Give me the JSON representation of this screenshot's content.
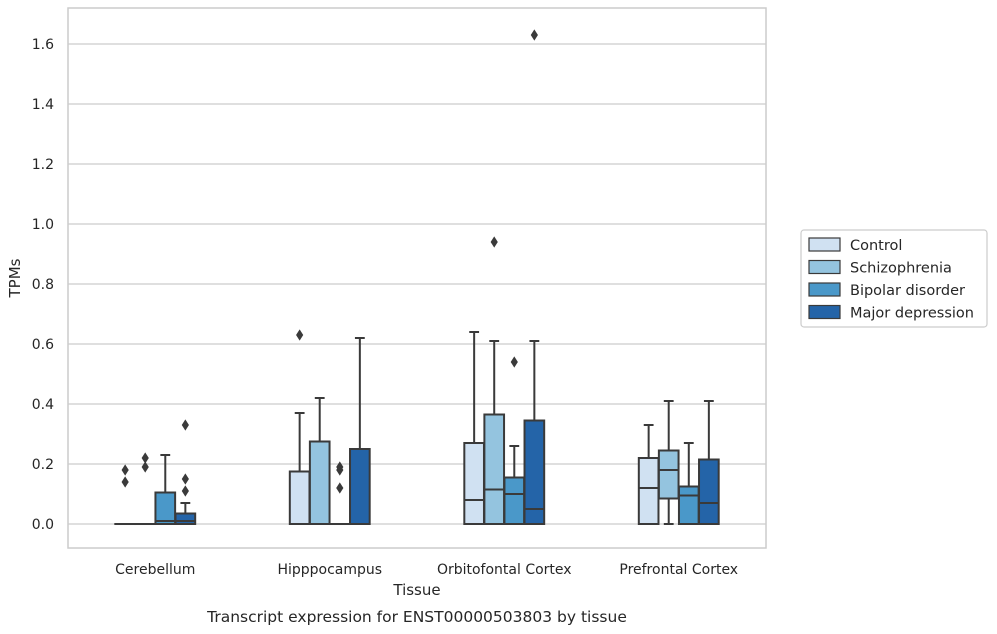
{
  "chart_data": {
    "type": "box",
    "title": "",
    "caption": "Transcript expression for ENST00000503803 by tissue",
    "xlabel": "Tissue",
    "ylabel": "TPMs",
    "ylim": [
      -0.08,
      1.72
    ],
    "yticks": [
      "0.0",
      "0.2",
      "0.4",
      "0.6",
      "0.8",
      "1.0",
      "1.2",
      "1.4",
      "1.6"
    ],
    "grid": "horizontal",
    "legend_position": "right",
    "categories": [
      "Cerebellum",
      "Hipppocampus",
      "Orbitofontal Cortex",
      "Prefrontal Cortex"
    ],
    "series": [
      {
        "name": "Control",
        "color": "#d0e1f2",
        "boxes": [
          {
            "whislo": 0.0,
            "q1": 0.0,
            "med": 0.0,
            "q3": 0.0,
            "whishi": 0.0,
            "fliers": [
              0.14,
              0.18
            ]
          },
          {
            "whislo": 0.0,
            "q1": 0.0,
            "med": 0.0,
            "q3": 0.175,
            "whishi": 0.37,
            "fliers": [
              0.63
            ]
          },
          {
            "whislo": 0.0,
            "q1": 0.0,
            "med": 0.08,
            "q3": 0.27,
            "whishi": 0.64,
            "fliers": []
          },
          {
            "whislo": 0.0,
            "q1": 0.0,
            "med": 0.12,
            "q3": 0.22,
            "whishi": 0.33,
            "fliers": []
          }
        ]
      },
      {
        "name": "Schizophrenia",
        "color": "#94c4df",
        "boxes": [
          {
            "whislo": 0.0,
            "q1": 0.0,
            "med": 0.0,
            "q3": 0.0,
            "whishi": 0.0,
            "fliers": [
              0.19,
              0.22
            ]
          },
          {
            "whislo": 0.0,
            "q1": 0.0,
            "med": 0.0,
            "q3": 0.275,
            "whishi": 0.42,
            "fliers": []
          },
          {
            "whislo": 0.0,
            "q1": 0.0,
            "med": 0.115,
            "q3": 0.365,
            "whishi": 0.61,
            "fliers": [
              0.94
            ]
          },
          {
            "whislo": 0.0,
            "q1": 0.085,
            "med": 0.18,
            "q3": 0.245,
            "whishi": 0.41,
            "fliers": []
          }
        ]
      },
      {
        "name": "Bipolar disorder",
        "color": "#4a98c9",
        "boxes": [
          {
            "whislo": 0.0,
            "q1": 0.0,
            "med": 0.01,
            "q3": 0.105,
            "whishi": 0.23,
            "fliers": []
          },
          {
            "whislo": 0.0,
            "q1": 0.0,
            "med": 0.0,
            "q3": 0.0,
            "whishi": 0.0,
            "fliers": [
              0.12,
              0.18,
              0.19
            ]
          },
          {
            "whislo": 0.0,
            "q1": 0.0,
            "med": 0.1,
            "q3": 0.155,
            "whishi": 0.26,
            "fliers": [
              0.54
            ]
          },
          {
            "whislo": 0.0,
            "q1": 0.0,
            "med": 0.095,
            "q3": 0.125,
            "whishi": 0.27,
            "fliers": []
          }
        ]
      },
      {
        "name": "Major depression",
        "color": "#2464a8",
        "boxes": [
          {
            "whislo": 0.0,
            "q1": 0.0,
            "med": 0.01,
            "q3": 0.035,
            "whishi": 0.07,
            "fliers": [
              0.11,
              0.15,
              0.33
            ]
          },
          {
            "whislo": 0.0,
            "q1": 0.0,
            "med": 0.0,
            "q3": 0.25,
            "whishi": 0.62,
            "fliers": []
          },
          {
            "whislo": 0.0,
            "q1": 0.0,
            "med": 0.05,
            "q3": 0.345,
            "whishi": 0.61,
            "fliers": [
              1.63
            ]
          },
          {
            "whislo": 0.0,
            "q1": 0.0,
            "med": 0.07,
            "q3": 0.215,
            "whishi": 0.41,
            "fliers": []
          }
        ]
      }
    ]
  }
}
